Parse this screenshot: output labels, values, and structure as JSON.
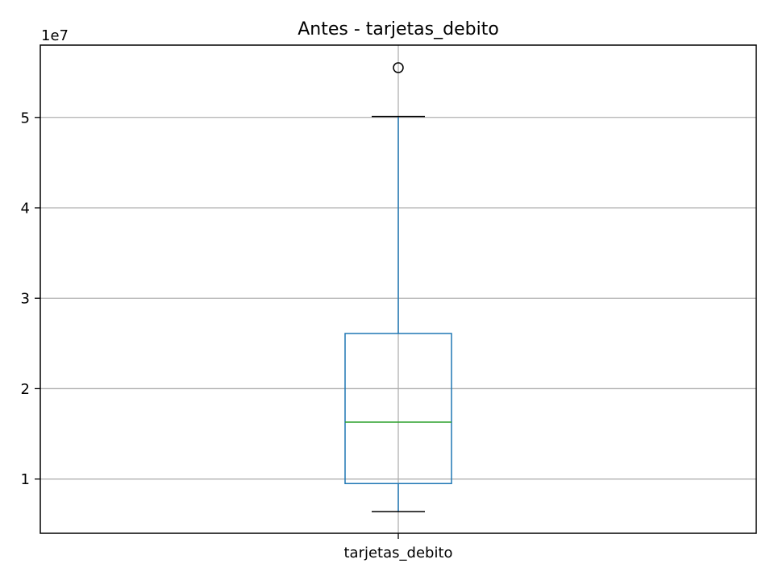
{
  "chart_data": {
    "type": "boxplot",
    "title": "Antes - tarjetas_debito",
    "xlabel": "",
    "ylabel": "",
    "category": "tarjetas_debito",
    "y_offset_label": "1e7",
    "y_scale": 10000000,
    "ylim": [
      4000000,
      58000000
    ],
    "yticks": [
      1,
      2,
      3,
      4,
      5
    ],
    "grid": true,
    "stats": {
      "whisker_low": 6400000,
      "q1": 9500000,
      "median": 16300000,
      "q3": 26100000,
      "whisker_high": 50100000
    },
    "fliers": [
      55500000
    ],
    "colors": {
      "box": "#1f77b4",
      "median": "#2ca02c",
      "whisker": "#1f77b4",
      "cap": "#000000",
      "flier": "#000000",
      "grid": "#b0b0b0"
    }
  }
}
